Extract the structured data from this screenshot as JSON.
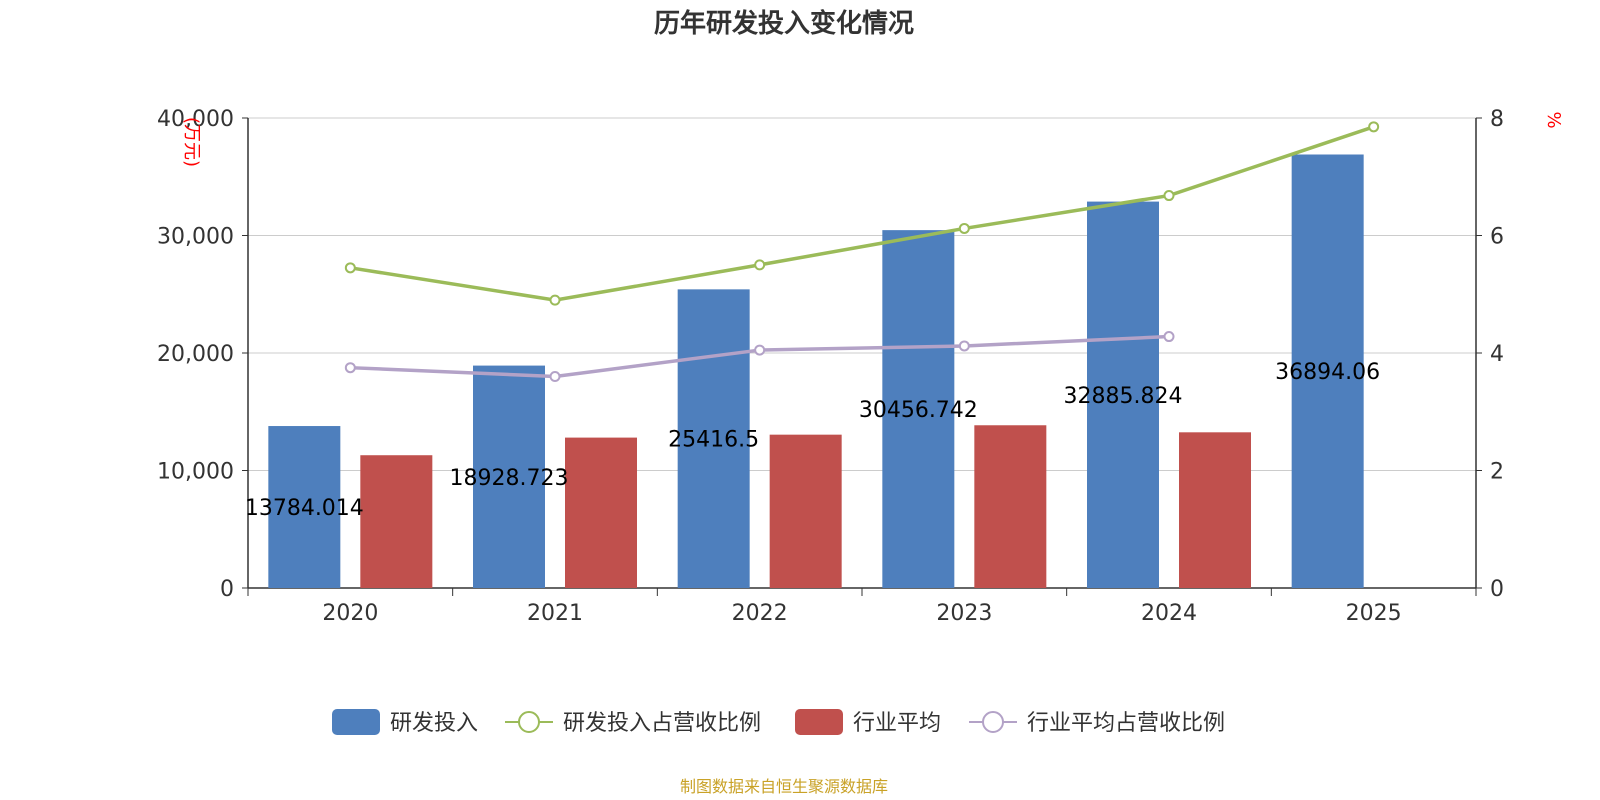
{
  "chart_data": {
    "type": "bar",
    "title": "历年研发投入变化情况",
    "categories": [
      "2020",
      "2021",
      "2022",
      "2023",
      "2024",
      "2025"
    ],
    "y_left": {
      "unit": "(万元)",
      "min": 0,
      "max": 40000,
      "ticks": [
        0,
        10000,
        20000,
        30000,
        40000
      ],
      "tick_labels": [
        "0",
        "10,000",
        "20,000",
        "30,000",
        "40,000"
      ]
    },
    "y_right": {
      "unit": "%",
      "min": 0,
      "max": 8,
      "ticks": [
        0,
        2,
        4,
        6,
        8
      ],
      "tick_labels": [
        "0",
        "2",
        "4",
        "6",
        "8"
      ]
    },
    "series": [
      {
        "name": "研发投入",
        "type": "bar",
        "axis": "left",
        "color": "#4e7fbd",
        "values": [
          13784.014,
          18928.723,
          25416.5,
          30456.742,
          32885.824,
          36894.06
        ],
        "labels": [
          "13784.014",
          "18928.723",
          "25416.5",
          "30456.742",
          "32885.824",
          "36894.06"
        ]
      },
      {
        "name": "研发投入占营收比例",
        "type": "line",
        "axis": "right",
        "color": "#9bbb59",
        "values": [
          5.45,
          4.9,
          5.5,
          6.12,
          6.68,
          7.85
        ]
      },
      {
        "name": "行业平均",
        "type": "bar",
        "axis": "left",
        "color": "#c0504d",
        "values": [
          11300,
          12800,
          13050,
          13850,
          13250,
          null
        ]
      },
      {
        "name": "行业平均占营收比例",
        "type": "line",
        "axis": "right",
        "color": "#b3a2c7",
        "values": [
          3.75,
          3.6,
          4.05,
          4.12,
          4.28,
          null
        ]
      }
    ],
    "grid": true,
    "legend_position": "bottom"
  },
  "source_note": "制图数据来自恒生聚源数据库",
  "colors": {
    "title": "#333333",
    "axis": "#333333",
    "grid": "#cccccc",
    "unit": "#ff0000",
    "source": "#c9a227"
  }
}
